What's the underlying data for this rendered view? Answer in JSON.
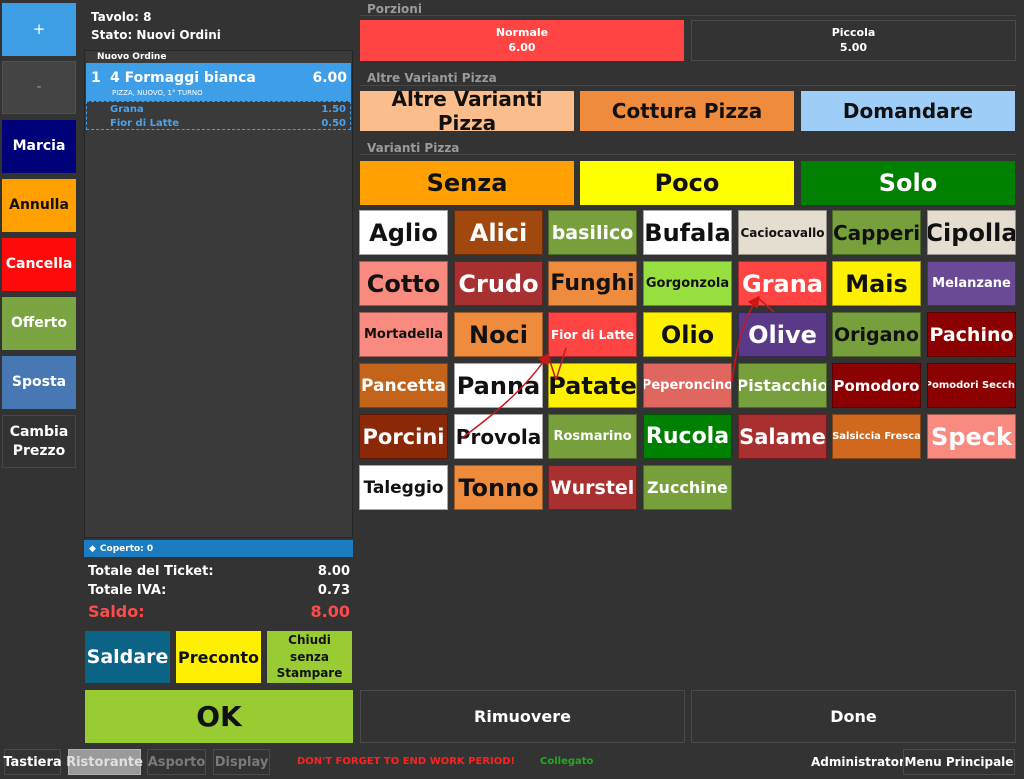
{
  "left_buttons": {
    "plus": "+",
    "minus": "-",
    "marcia": "Marcia",
    "annulla": "Annulla",
    "cancella": "Cancella",
    "offerto": "Offerto",
    "sposta": "Sposta",
    "cambia_prezzo_1": "Cambia",
    "cambia_prezzo_2": "Prezzo"
  },
  "header": {
    "tavolo": "Tavolo: 8",
    "stato": "Stato: Nuovi Ordini"
  },
  "order": {
    "section": "Nuovo Ordine",
    "qty": "1",
    "name": "4 Formaggi bianca",
    "price": "6.00",
    "tags": "PIZZA, NUOVO, 1° TURNO",
    "modifiers": [
      {
        "name": "Grana",
        "price": "1.50"
      },
      {
        "name": "Fior di Latte",
        "price": "0.50"
      }
    ]
  },
  "coperto": "Coperto: 0",
  "totals": {
    "ticket_label": "Totale del Ticket:",
    "ticket_value": "8.00",
    "iva_label": "Totale IVA:",
    "iva_value": "0.73",
    "saldo_label": "Saldo:",
    "saldo_value": "8.00"
  },
  "actions": {
    "saldare": "Saldare",
    "preconto": "Preconto",
    "chiudi_1": "Chiudi senza",
    "chiudi_2": "Stampare",
    "ok": "OK",
    "rimuovere": "Rimuovere",
    "done": "Done"
  },
  "porzioni": {
    "title": "Porzioni",
    "items": [
      {
        "name": "Normale",
        "price": "6.00"
      },
      {
        "name": "Piccola",
        "price": "5.00"
      }
    ]
  },
  "altre_varianti": {
    "title": "Altre Varianti Pizza",
    "items": [
      "Altre Varianti Pizza",
      "Cottura Pizza",
      "Domandare"
    ]
  },
  "varianti": {
    "title": "Varianti Pizza",
    "modes": [
      "Senza",
      "Poco",
      "Solo"
    ],
    "items": [
      "Aglio",
      "Alici",
      "basilico",
      "Bufala",
      "Caciocavallo",
      "Capperi",
      "Cipolla",
      "Cotto",
      "Crudo",
      "Funghi",
      "Gorgonzola",
      "Grana",
      "Mais",
      "Melanzane",
      "Mortadella",
      "Noci",
      "Fior di Latte",
      "Olio",
      "Olive",
      "Origano",
      "Pachino",
      "Pancetta",
      "Panna",
      "Patate",
      "Peperoncino",
      "Pistacchio",
      "Pomodoro",
      "Pomodori Secchi",
      "Porcini",
      "Provola",
      "Rosmarino",
      "Rucola",
      "Salame",
      "Salsiccia Fresca",
      "Speck",
      "Taleggio",
      "Tonno",
      "Wurstel",
      "Zucchine"
    ]
  },
  "footer": {
    "tastiera": "Tastiera",
    "ristorante": "Ristorante",
    "asporto": "Asporto",
    "display": "Display",
    "warning": "DON'T FORGET TO END WORK PERIOD!",
    "status": "Collegato",
    "user": "Administrator",
    "menu": "Menu Principale"
  },
  "colors": {
    "background": "#333333",
    "accent_blue": "#3e9ee8",
    "saldo_red": "#ff4a4a",
    "ok_green": "#99cc33",
    "warning_red": "#ff2020",
    "status_green": "#22aa22"
  }
}
